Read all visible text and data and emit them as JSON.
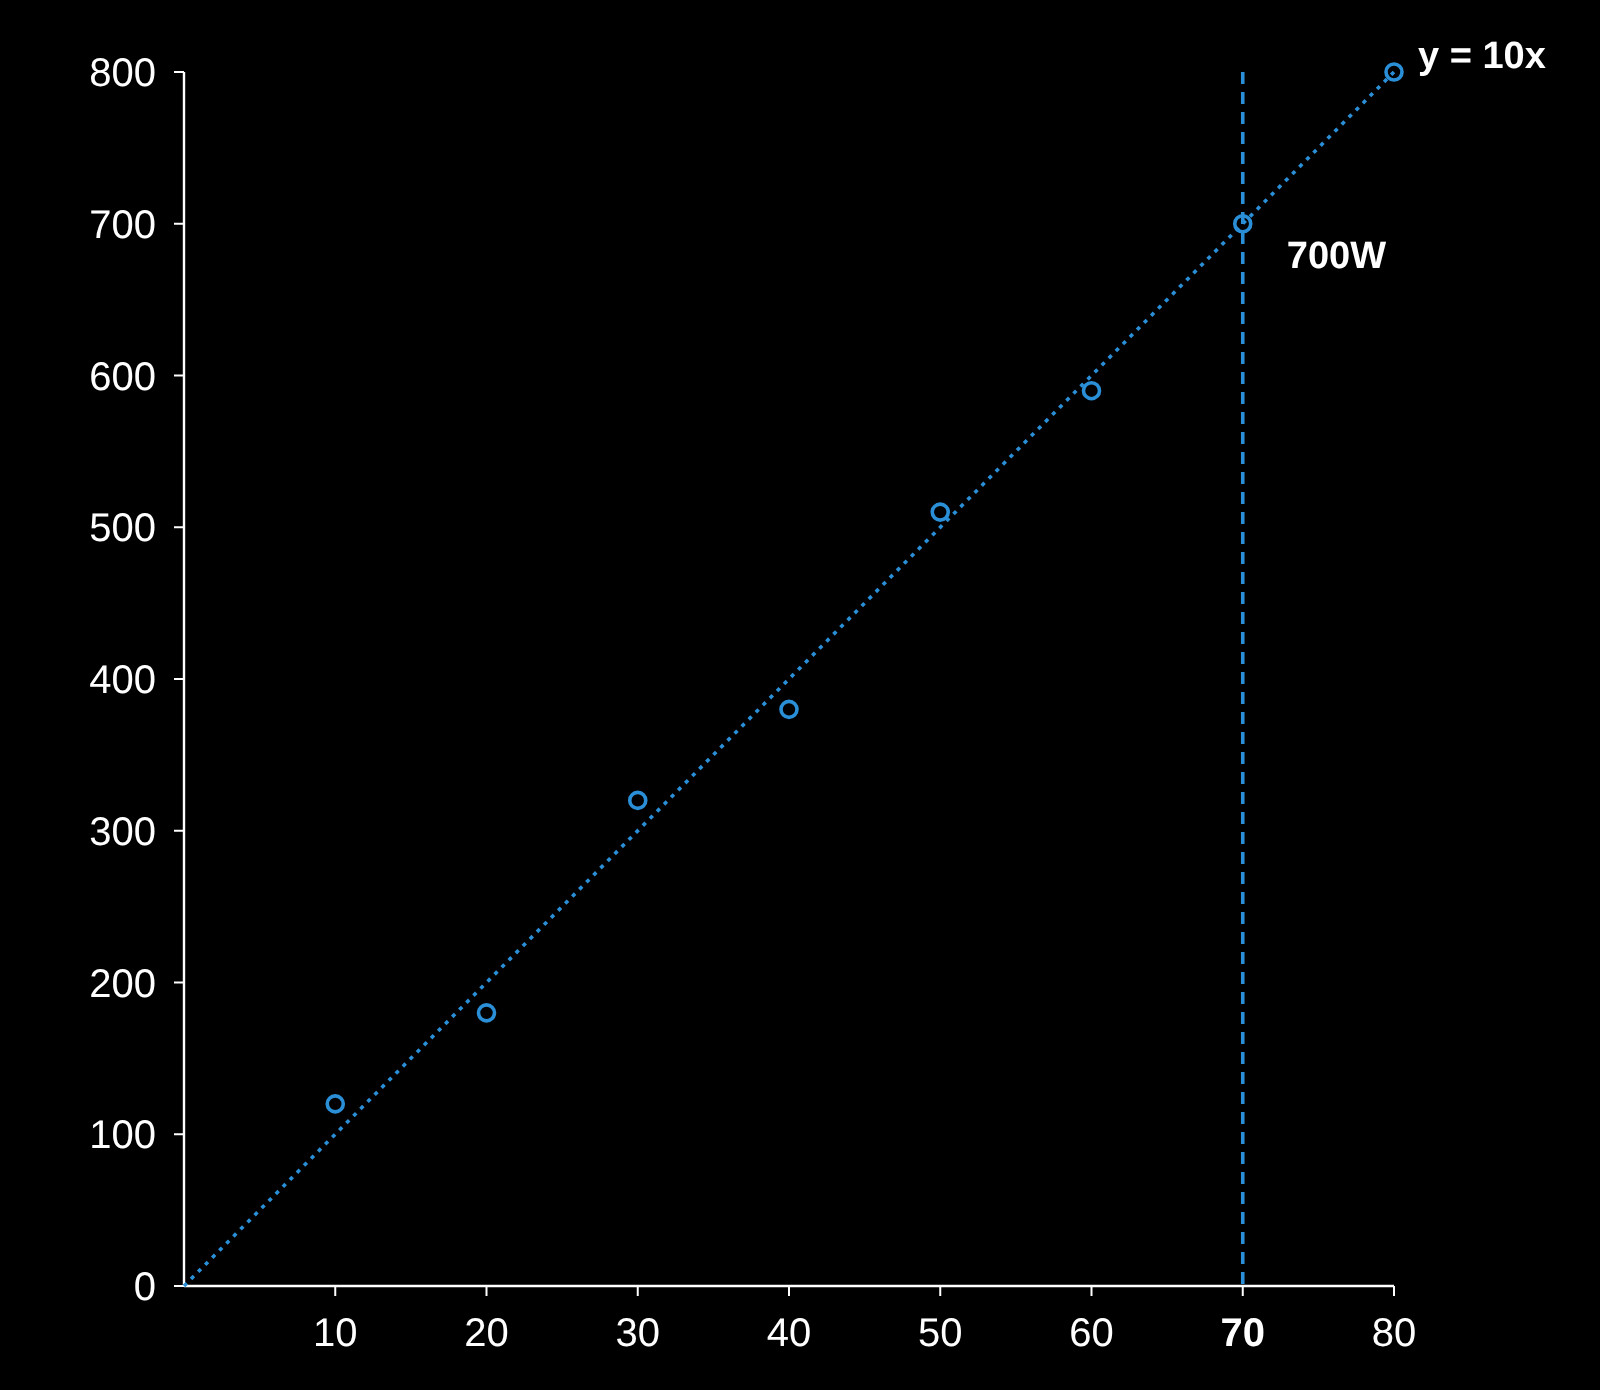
{
  "chart_data": {
    "type": "scatter",
    "x": [
      10,
      20,
      30,
      40,
      50,
      60,
      70,
      80
    ],
    "xlim": [
      0,
      80
    ],
    "ylim": [
      0,
      800
    ],
    "xticks": [
      10,
      20,
      30,
      40,
      50,
      60,
      70,
      80
    ],
    "yticks": [
      0,
      100,
      200,
      300,
      400,
      500,
      600,
      700,
      800
    ],
    "grid": false,
    "marker": "circle",
    "series": [
      {
        "color": "#2a8fd6",
        "values": [
          120,
          180,
          320,
          380,
          510,
          590,
          700,
          800
        ]
      },
      {
        "type": "line",
        "name": "y = 10x",
        "color": "#2a8fd6",
        "x": [
          0,
          80
        ],
        "values": [
          0,
          800
        ],
        "line_style": "dotted",
        "marker": "none"
      }
    ],
    "ref_lines": [
      {
        "axis": "x",
        "value": 70,
        "color": "#2a8fd6",
        "line_style": "dashed"
      }
    ],
    "annotations": [
      {
        "text": "700W",
        "x": 70,
        "y": 700
      }
    ]
  }
}
